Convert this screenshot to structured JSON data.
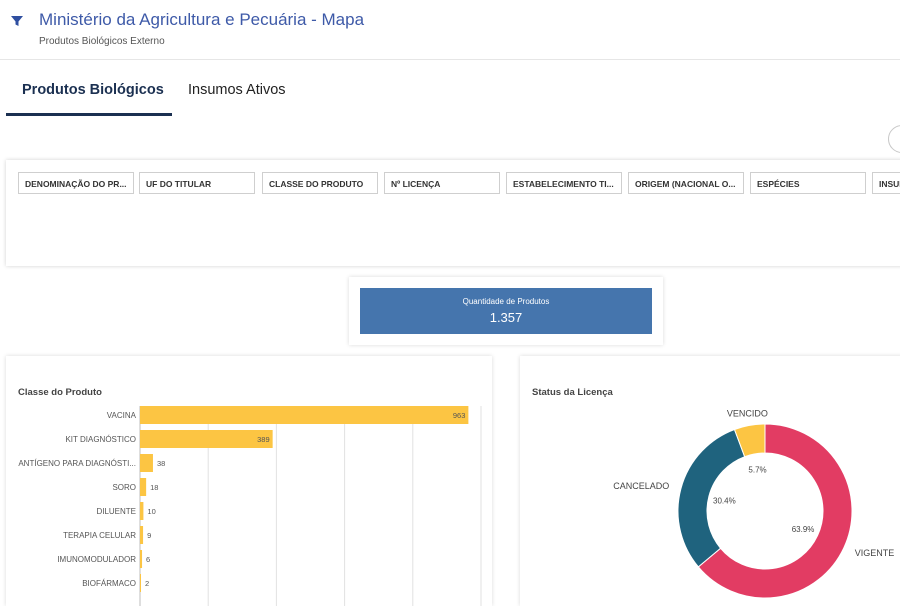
{
  "header": {
    "title": "Ministério da Agricultura e Pecuária - Mapa",
    "subtitle": "Produtos Biológicos Externo",
    "filter_icon": "funnel-icon"
  },
  "tabs": [
    {
      "label": "Produtos Biológicos",
      "active": true
    },
    {
      "label": "Insumos Ativos",
      "active": false
    }
  ],
  "filters": [
    "DENOMINAÇÃO DO PR...",
    "UF DO TITULAR",
    "CLASSE DO PRODUTO",
    "Nº LICENÇA",
    "ESTABELECIMENTO TI...",
    "ORIGEM (NACIONAL O...",
    "ESPÉCIES",
    "INSUMO"
  ],
  "kpi": {
    "label": "Quantidade de Produtos",
    "value": "1.357",
    "color": "#4575ad"
  },
  "chart_data": [
    {
      "type": "bar",
      "orientation": "horizontal",
      "title": "Classe do Produto",
      "color": "#fcc543",
      "categories": [
        "VACINA",
        "KIT DIAGNÓSTICO",
        "ANTÍGENO PARA DIAGNÓSTI...",
        "SORO",
        "DILUENTE",
        "TERAPIA CELULAR",
        "IMUNOMODULADOR",
        "BIOFÁRMACO"
      ],
      "values": [
        963,
        389,
        38,
        18,
        10,
        9,
        6,
        2
      ],
      "labels": [
        "963",
        "389",
        "38",
        "18",
        "10",
        "9",
        "6",
        "2"
      ],
      "xlim": [
        0,
        1000
      ],
      "grid": true
    },
    {
      "type": "pie",
      "donut": true,
      "title": "Status da Licença",
      "slices": [
        {
          "name": "VIGENTE",
          "value": 63.9,
          "label": "63.9%",
          "color": "#e23c63"
        },
        {
          "name": "CANCELADO",
          "value": 30.4,
          "label": "30.4%",
          "color": "#1f637e"
        },
        {
          "name": "VENCIDO",
          "value": 5.7,
          "label": "5.7%",
          "color": "#fcc543"
        }
      ]
    }
  ]
}
